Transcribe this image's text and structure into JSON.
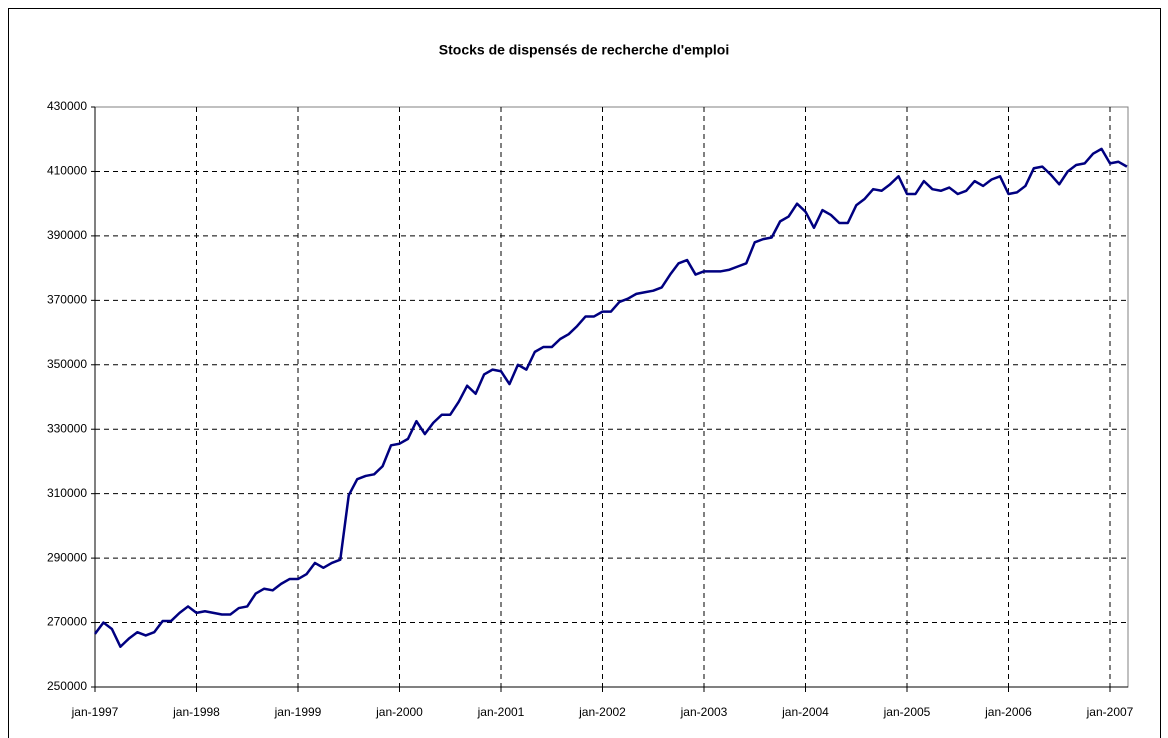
{
  "chart_data": {
    "type": "line",
    "title": "Stocks de dispensés de recherche d'emploi",
    "categories": [
      "jan-1997",
      null,
      null,
      null,
      null,
      null,
      null,
      null,
      null,
      null,
      null,
      null,
      "jan-1998",
      null,
      null,
      null,
      null,
      null,
      null,
      null,
      null,
      null,
      null,
      null,
      "jan-1999",
      null,
      null,
      null,
      null,
      null,
      null,
      null,
      null,
      null,
      null,
      null,
      "jan-2000",
      null,
      null,
      null,
      null,
      null,
      null,
      null,
      null,
      null,
      null,
      null,
      "jan-2001",
      null,
      null,
      null,
      null,
      null,
      null,
      null,
      null,
      null,
      null,
      null,
      "jan-2002",
      null,
      null,
      null,
      null,
      null,
      null,
      null,
      null,
      null,
      null,
      null,
      "jan-2003",
      null,
      null,
      null,
      null,
      null,
      null,
      null,
      null,
      null,
      null,
      null,
      "jan-2004",
      null,
      null,
      null,
      null,
      null,
      null,
      null,
      null,
      null,
      null,
      null,
      "jan-2005",
      null,
      null,
      null,
      null,
      null,
      null,
      null,
      null,
      null,
      null,
      null,
      "jan-2006",
      null,
      null,
      null,
      null,
      null,
      null,
      null,
      null,
      null,
      null,
      null,
      "jan-2007",
      null,
      null
    ],
    "series": [
      {
        "color": "#000080",
        "values": [
          266500,
          270000,
          268000,
          262500,
          265000,
          267000,
          266000,
          267000,
          270500,
          270500,
          273000,
          275000,
          273000,
          273500,
          273000,
          272500,
          272500,
          274500,
          275000,
          279000,
          280500,
          280000,
          282000,
          283500,
          283500,
          285000,
          288500,
          287000,
          288500,
          289500,
          309500,
          314500,
          315500,
          316000,
          318500,
          325000,
          325500,
          327000,
          332500,
          328500,
          332000,
          334500,
          334500,
          338500,
          343500,
          341000,
          347000,
          348500,
          348000,
          344000,
          350000,
          348500,
          354000,
          355500,
          355500,
          358000,
          359500,
          362000,
          365000,
          365000,
          366500,
          366500,
          369500,
          370500,
          372000,
          372500,
          373000,
          374000,
          378000,
          381500,
          382500,
          378000,
          379000,
          379000,
          379000,
          379500,
          380500,
          381500,
          388000,
          389000,
          389500,
          394500,
          396000,
          400000,
          397500,
          392500,
          398000,
          396500,
          394000,
          394000,
          399500,
          401500,
          404500,
          404000,
          406000,
          408500,
          403000,
          403000,
          407000,
          404500,
          404000,
          405000,
          403000,
          404000,
          407000,
          405500,
          407500,
          408500,
          403000,
          403500,
          405500,
          411000,
          411500,
          409000,
          406000,
          410000,
          412000,
          412500,
          415500,
          417000,
          412500,
          413000,
          411500
        ]
      }
    ],
    "ylim": [
      250000,
      430000
    ],
    "yticks": [
      250000,
      270000,
      290000,
      310000,
      330000,
      350000,
      370000,
      390000,
      410000,
      430000
    ],
    "grid": true
  }
}
